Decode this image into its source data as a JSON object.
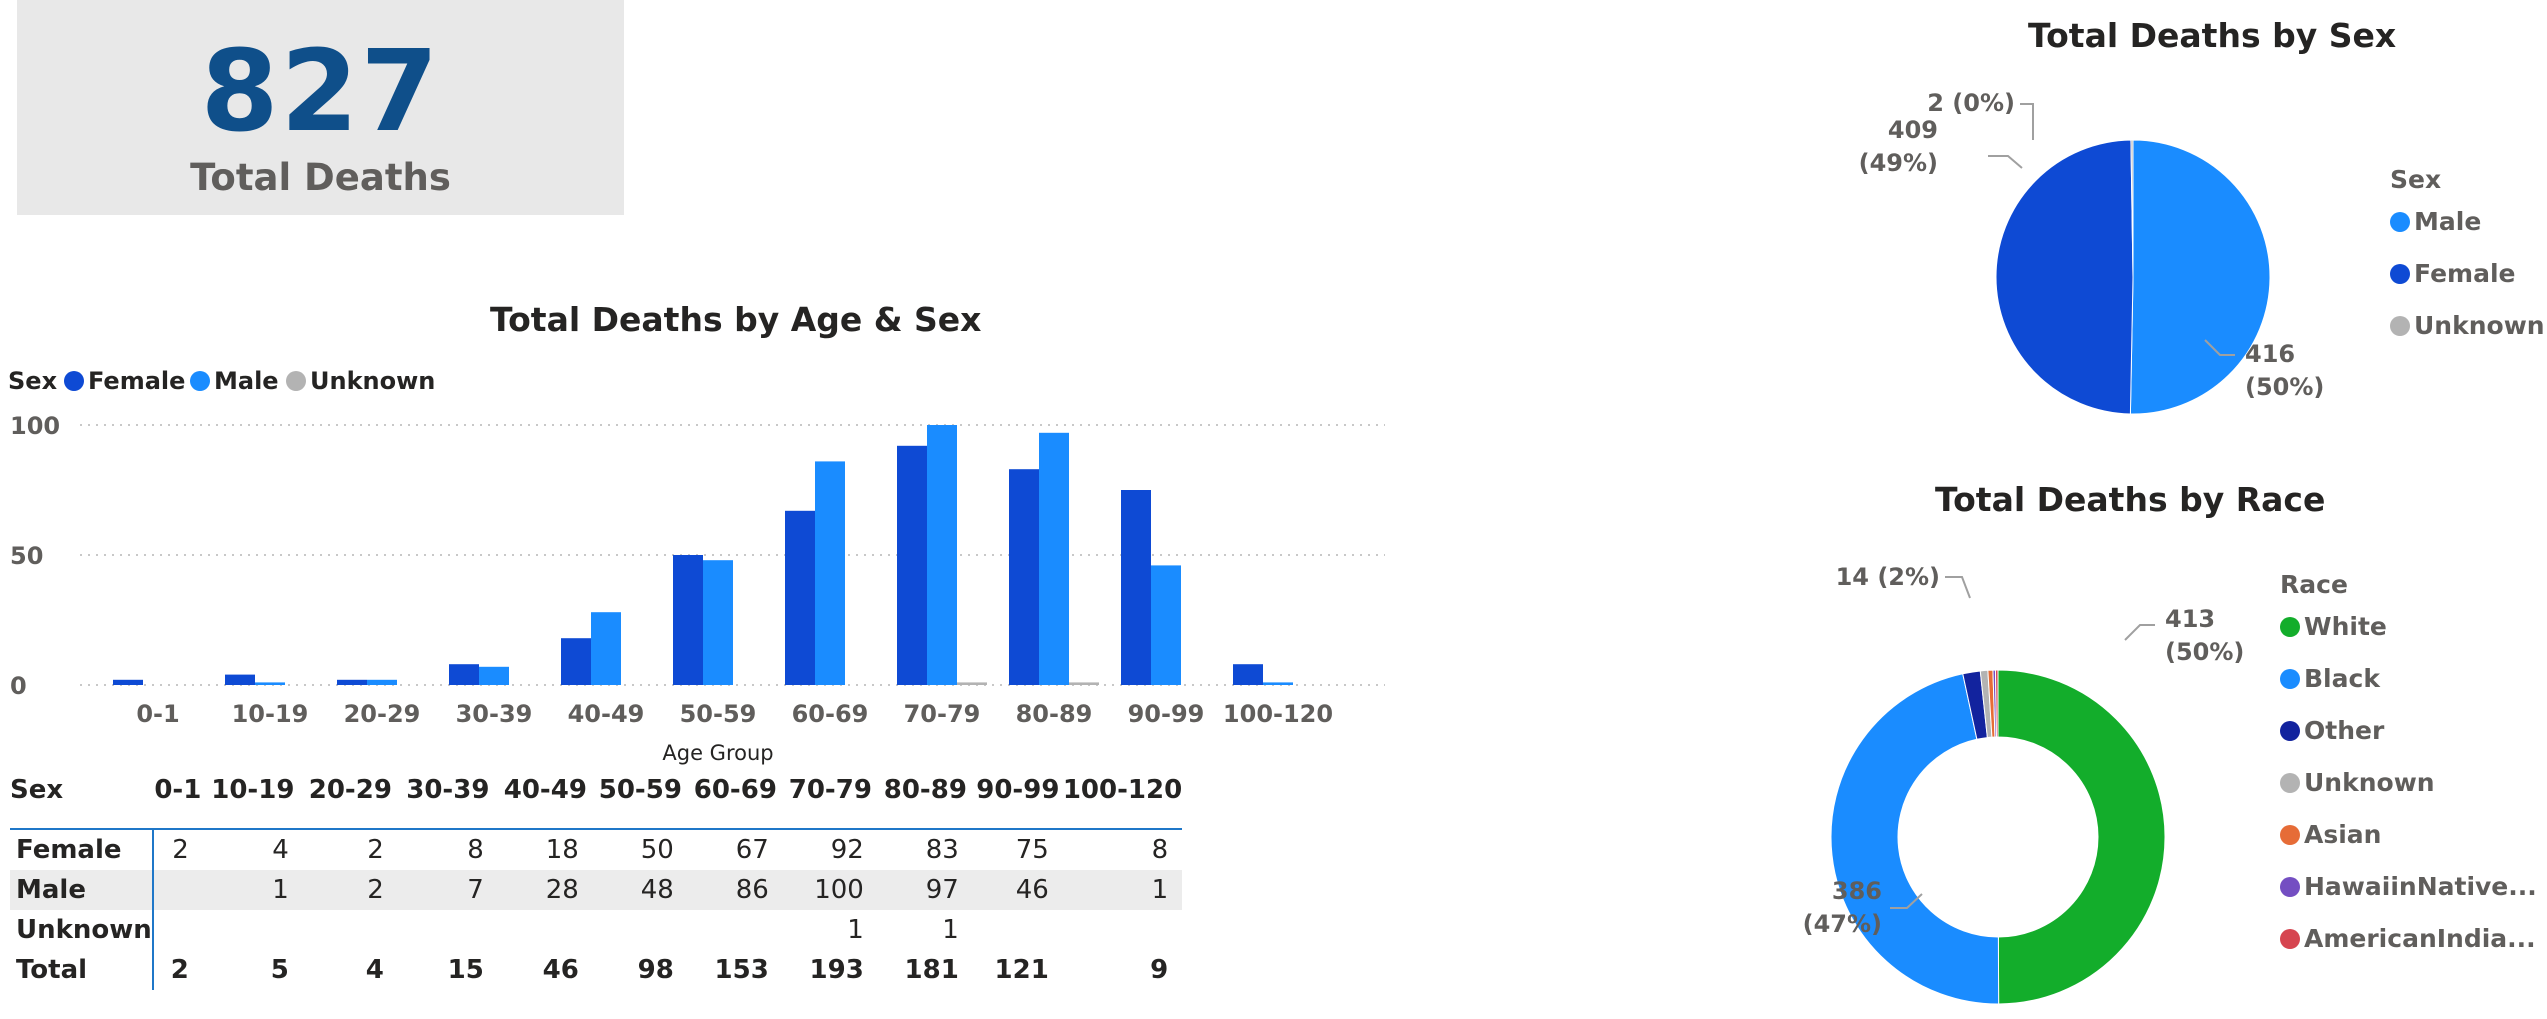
{
  "kpi": {
    "value": "827",
    "label": "Total Deaths"
  },
  "colors": {
    "female": "#0e4ad4",
    "male": "#1a8cff",
    "unknown": "#b3b3b3"
  },
  "chart_data": [
    {
      "id": "age-sex",
      "type": "bar",
      "title": "Total Deaths by Age & Sex",
      "xlabel": "Age Group",
      "ylabel": "",
      "legend_title": "Sex",
      "legend_position": "top-left",
      "categories": [
        "0-1",
        "10-19",
        "20-29",
        "30-39",
        "40-49",
        "50-59",
        "60-69",
        "70-79",
        "80-89",
        "90-99",
        "100-120"
      ],
      "ylim": [
        0,
        100
      ],
      "yticks": [
        0,
        50,
        100
      ],
      "grid": true,
      "series": [
        {
          "name": "Female",
          "color": "#0e4ad4",
          "values": [
            2,
            4,
            2,
            8,
            18,
            50,
            67,
            92,
            83,
            75,
            8
          ]
        },
        {
          "name": "Male",
          "color": "#1a8cff",
          "values": [
            0,
            1,
            2,
            7,
            28,
            48,
            86,
            100,
            97,
            46,
            1
          ]
        },
        {
          "name": "Unknown",
          "color": "#b3b3b3",
          "values": [
            0,
            0,
            0,
            0,
            0,
            0,
            0,
            1,
            1,
            0,
            0
          ]
        }
      ]
    },
    {
      "id": "sex-pie",
      "type": "pie",
      "title": "Total Deaths by Sex",
      "legend_title": "Sex",
      "legend_position": "right",
      "slices": [
        {
          "name": "Male",
          "value": 416,
          "color": "#1a8cff",
          "label": "416",
          "pct": "(50%)"
        },
        {
          "name": "Female",
          "value": 409,
          "color": "#0e4ad4",
          "label": "409",
          "pct": "(49%)"
        },
        {
          "name": "Unknown",
          "value": 2,
          "color": "#b3b3b3",
          "label": "2 (0%)",
          "pct": ""
        }
      ]
    },
    {
      "id": "race-donut",
      "type": "pie",
      "title": "Total Deaths by Race",
      "legend_title": "Race",
      "legend_position": "right",
      "slices": [
        {
          "name": "White",
          "value": 413,
          "color": "#13ad2b",
          "label": "413",
          "pct": "(50%)"
        },
        {
          "name": "Black",
          "value": 386,
          "color": "#1a8cff",
          "label": "386",
          "pct": "(47%)"
        },
        {
          "name": "Other",
          "value": 14,
          "color": "#12239e",
          "label": "14 (2%)",
          "pct": ""
        },
        {
          "name": "Unknown",
          "value": 6,
          "color": "#b3b3b3",
          "label": "",
          "pct": ""
        },
        {
          "name": "Asian",
          "value": 4,
          "color": "#e66c37",
          "label": "",
          "pct": ""
        },
        {
          "name": "HawaiinNative...",
          "value": 2,
          "color": "#744ec2",
          "label": "",
          "pct": ""
        },
        {
          "name": "AmericanIndia...",
          "value": 2,
          "color": "#d64550",
          "label": "",
          "pct": ""
        }
      ]
    }
  ],
  "matrix": {
    "corner": "Sex",
    "columns": [
      "0-1",
      "10-19",
      "20-29",
      "30-39",
      "40-49",
      "50-59",
      "60-69",
      "70-79",
      "80-89",
      "90-99",
      "100-120"
    ],
    "rows": [
      {
        "label": "Female",
        "cells": [
          "2",
          "4",
          "2",
          "8",
          "18",
          "50",
          "67",
          "92",
          "83",
          "75",
          "8"
        ]
      },
      {
        "label": "Male",
        "cells": [
          "",
          "1",
          "2",
          "7",
          "28",
          "48",
          "86",
          "100",
          "97",
          "46",
          "1"
        ]
      },
      {
        "label": "Unknown",
        "cells": [
          "",
          "",
          "",
          "",
          "",
          "",
          "",
          "1",
          "1",
          "",
          ""
        ]
      },
      {
        "label": "Total",
        "cells": [
          "2",
          "5",
          "4",
          "15",
          "46",
          "98",
          "153",
          "193",
          "181",
          "121",
          "9"
        ]
      }
    ]
  }
}
